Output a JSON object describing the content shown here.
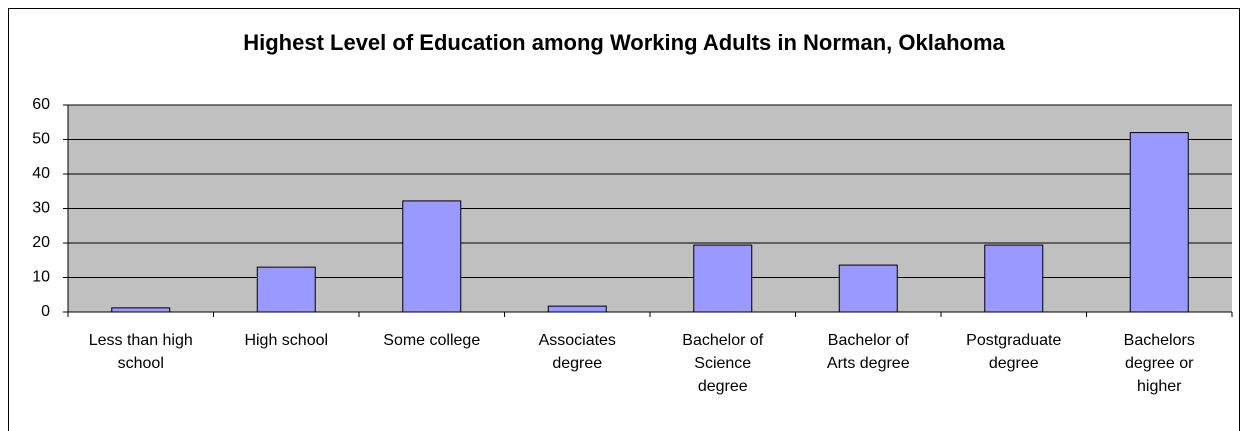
{
  "chart_data": {
    "type": "bar",
    "title": "Highest Level of Education among Working Adults in Norman, Oklahoma",
    "categories": [
      "Less than high school",
      "High school",
      "Some college",
      "Associates degree",
      "Bachelor of Science degree",
      "Bachelor of Arts degree",
      "Postgraduate degree",
      "Bachelors degree or higher"
    ],
    "values": [
      1.2,
      13,
      32.2,
      1.7,
      19.4,
      13.6,
      19.4,
      52
    ],
    "color": "#9999ff",
    "ylim": [
      0,
      60
    ],
    "yticks": [
      0,
      10,
      20,
      30,
      40,
      50,
      60
    ],
    "grid": true
  }
}
